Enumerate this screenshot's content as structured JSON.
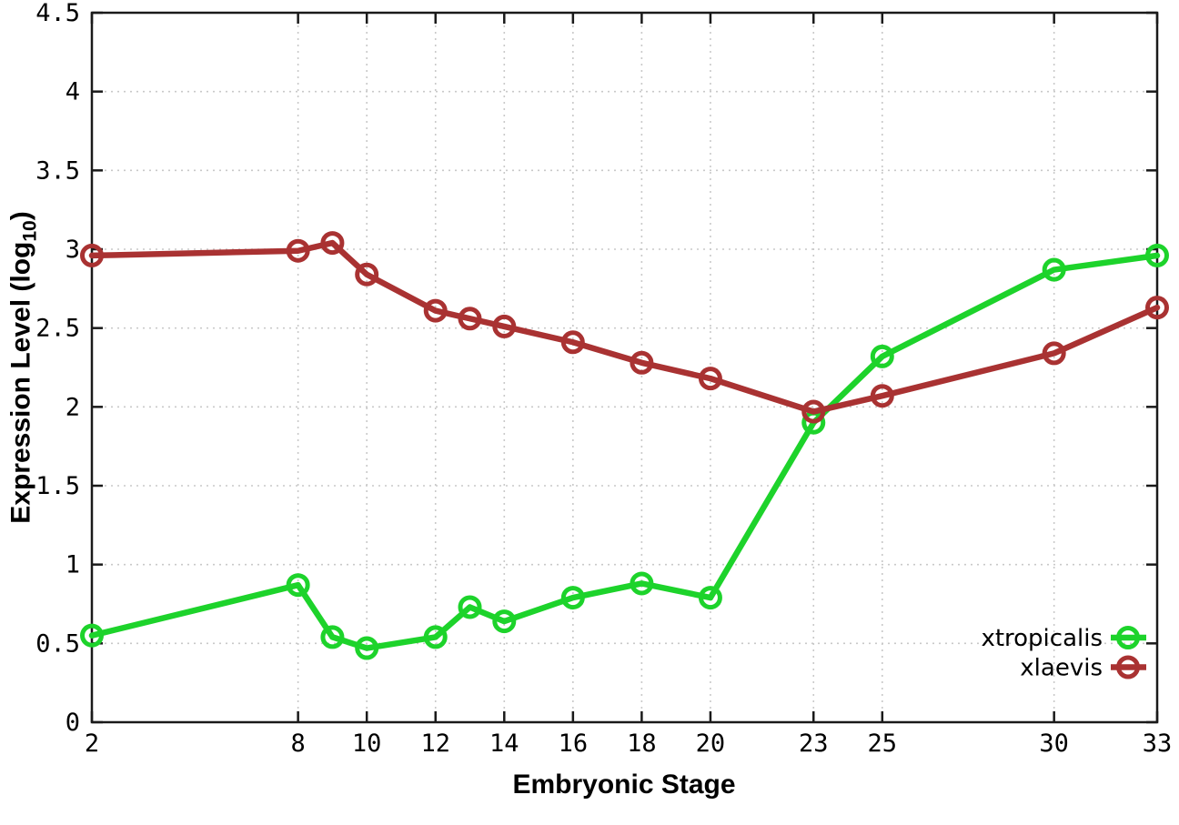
{
  "chart_data": {
    "type": "line",
    "title": "",
    "xlabel": "Embryonic Stage",
    "ylabel_prefix": "Expression Level (log",
    "ylabel_sub": "10",
    "ylabel_suffix": ")",
    "xlim": [
      2,
      33
    ],
    "ylim": [
      0,
      4.5
    ],
    "grid": true,
    "legend_position": "bottom-right",
    "x_ticks": [
      2,
      8,
      10,
      12,
      14,
      16,
      18,
      20,
      23,
      25,
      30,
      33
    ],
    "y_ticks": [
      0,
      0.5,
      1,
      1.5,
      2,
      2.5,
      3,
      3.5,
      4,
      4.5
    ],
    "x": [
      2,
      8,
      9,
      10,
      12,
      13,
      14,
      16,
      18,
      20,
      23,
      25,
      30,
      33
    ],
    "series": [
      {
        "name": "xtropicalis",
        "color": "#1dd32b",
        "values": [
          0.55,
          0.87,
          0.54,
          0.47,
          0.54,
          0.73,
          0.64,
          0.79,
          0.88,
          0.79,
          1.9,
          2.32,
          2.87,
          2.96
        ]
      },
      {
        "name": "xlaevis",
        "color": "#a93232",
        "values": [
          2.96,
          2.99,
          3.04,
          2.84,
          2.61,
          2.56,
          2.51,
          2.41,
          2.28,
          2.18,
          1.97,
          2.07,
          2.34,
          2.63
        ]
      }
    ]
  },
  "colors": {
    "grid": "#c9c9c9",
    "axis": "#1a1a1a",
    "text": "#000000",
    "background": "#ffffff"
  }
}
